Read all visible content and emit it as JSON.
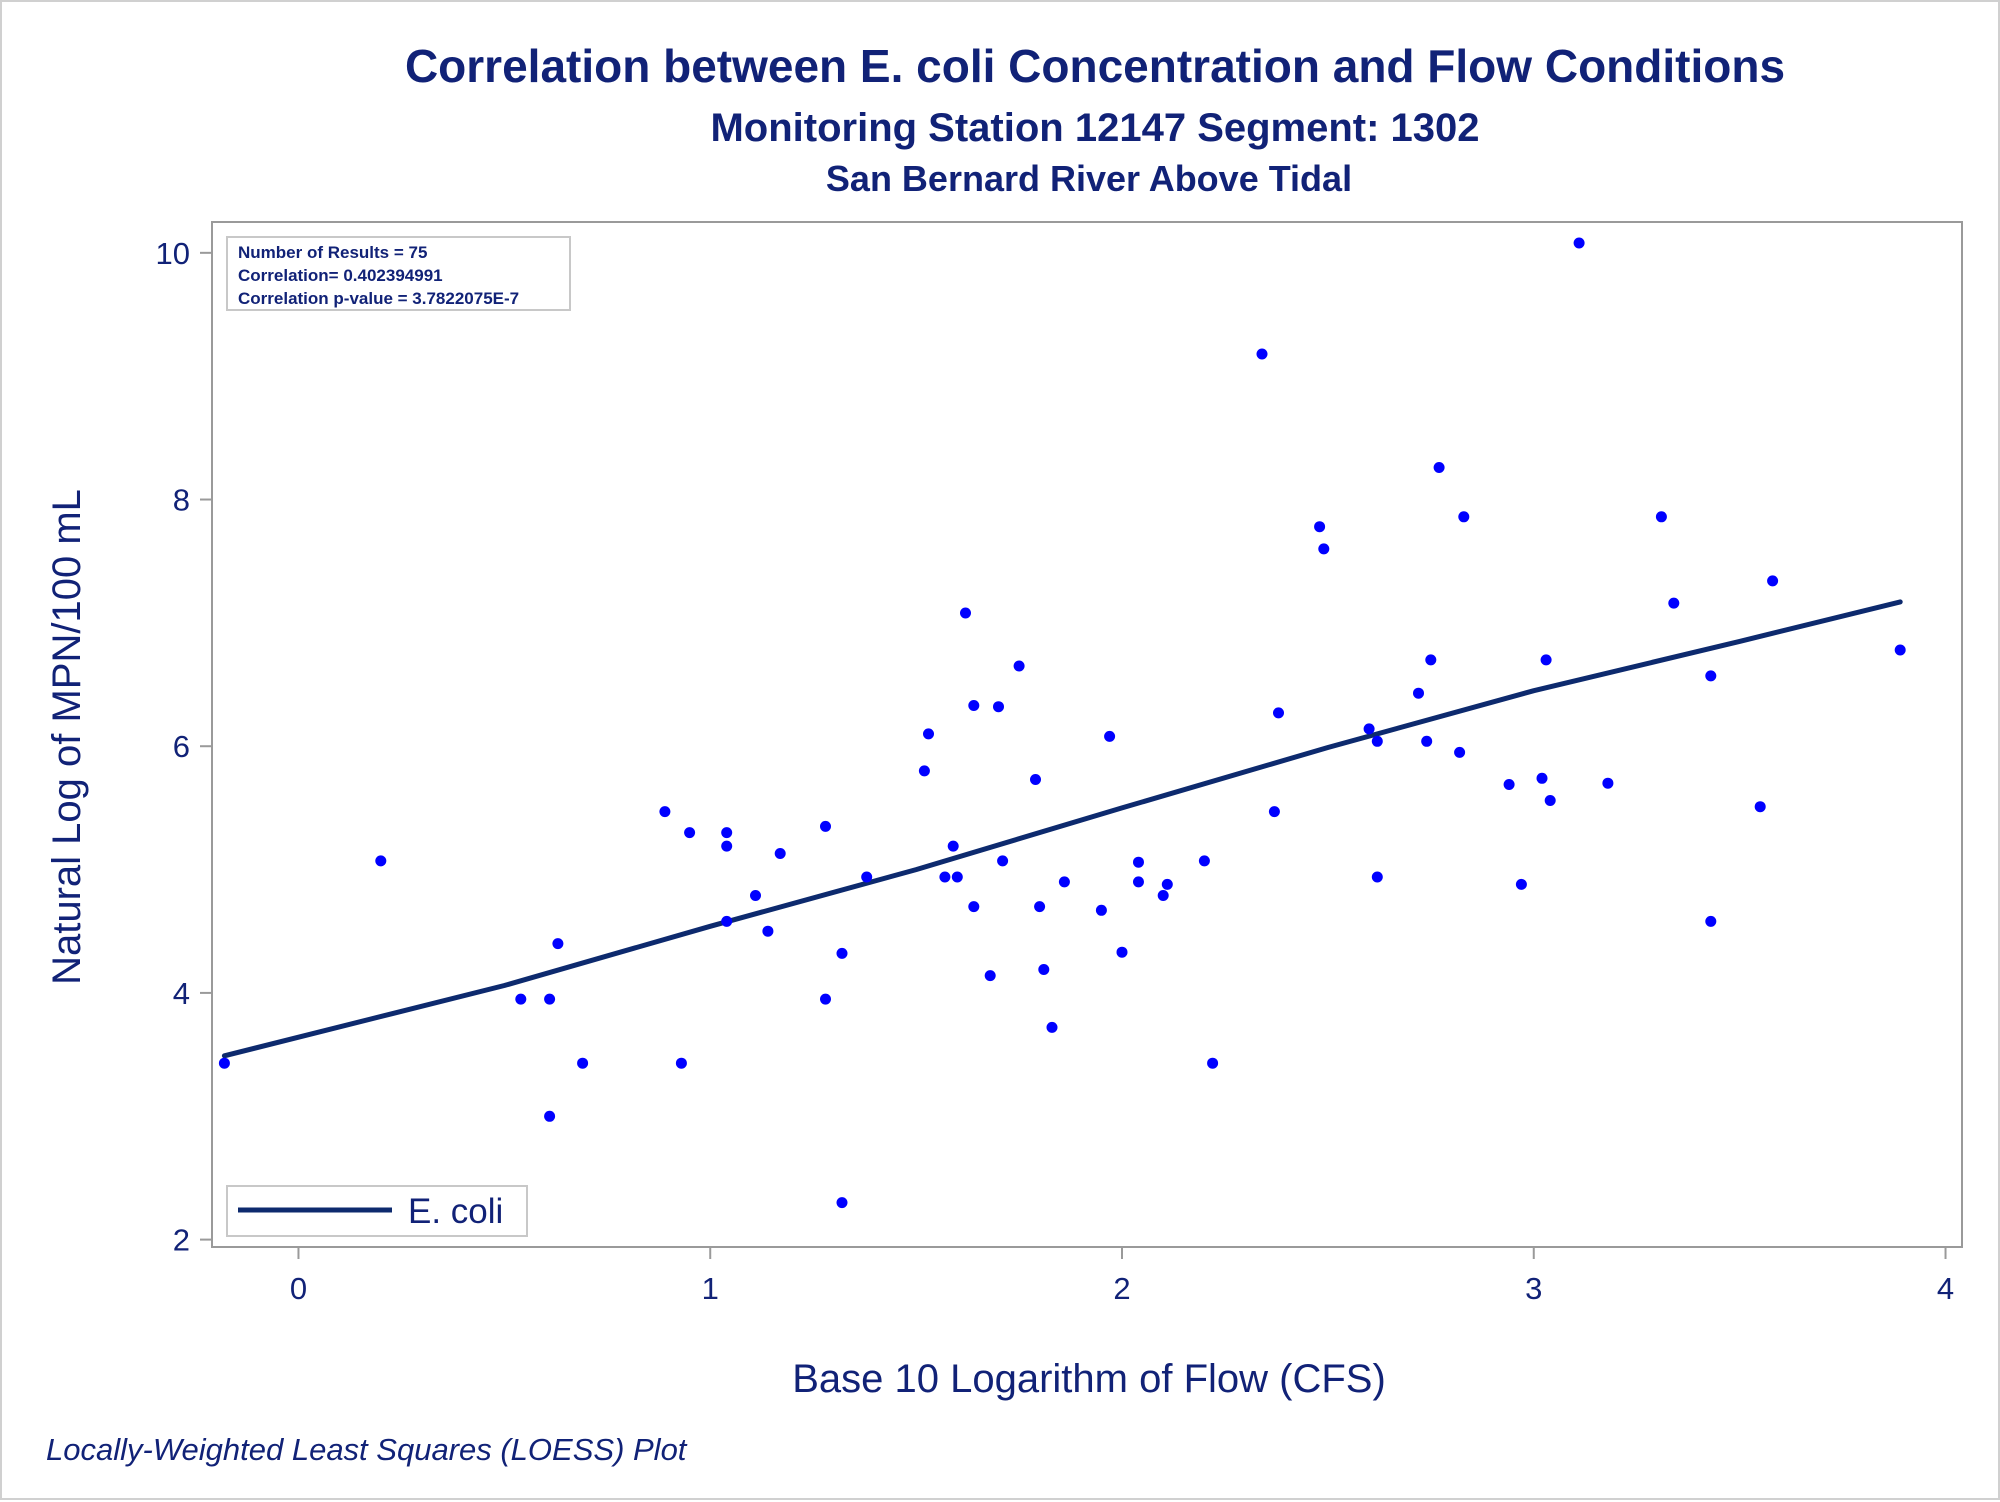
{
  "colors": {
    "text": "#112277",
    "line": "#0d2a6e",
    "points": "#0000ff",
    "frame": "#9a9a9a",
    "box_border": "#c8c8c8"
  },
  "chart_data": {
    "type": "scatter",
    "title": "Correlation between E. coli Concentration and Flow Conditions",
    "subtitle": "Monitoring Station 12147 Segment: 1302",
    "subtitle2": "San Bernard River Above Tidal",
    "xlabel": "Base 10 Logarithm of Flow (CFS)",
    "ylabel": "Natural Log of MPN/100 mL",
    "footnote": "Locally-Weighted Least Squares (LOESS) Plot",
    "xlim": [
      -0.21,
      4.04
    ],
    "ylim": [
      1.94,
      10.25
    ],
    "xticks": [
      "0",
      "1",
      "2",
      "3",
      "4"
    ],
    "yticks": [
      "2",
      "4",
      "6",
      "8",
      "10"
    ],
    "grid": false,
    "legend_position": "bottom-left",
    "legend": [
      "E. coli"
    ],
    "stats": {
      "line1": "Number of Results = 75",
      "line2": "Correlation= 0.402394991",
      "line3": "Correlation p-value = 3.7822075E-7"
    },
    "series": [
      {
        "name": "E. coli",
        "kind": "loess-line",
        "points": [
          [
            -0.18,
            3.49
          ],
          [
            0.5,
            4.06
          ],
          [
            1.0,
            4.54
          ],
          [
            1.5,
            5.0
          ],
          [
            2.0,
            5.5
          ],
          [
            2.5,
            5.99
          ],
          [
            3.0,
            6.45
          ],
          [
            3.5,
            6.85
          ],
          [
            3.89,
            7.17
          ]
        ]
      },
      {
        "name": "",
        "kind": "points",
        "points": [
          [
            -0.18,
            3.43
          ],
          [
            0.2,
            5.07
          ],
          [
            0.54,
            3.95
          ],
          [
            0.61,
            3.95
          ],
          [
            0.61,
            3.0
          ],
          [
            0.63,
            4.4
          ],
          [
            0.69,
            3.43
          ],
          [
            0.89,
            5.47
          ],
          [
            0.93,
            3.43
          ],
          [
            0.95,
            5.3
          ],
          [
            1.04,
            5.3
          ],
          [
            1.04,
            5.19
          ],
          [
            1.04,
            4.58
          ],
          [
            1.11,
            4.79
          ],
          [
            1.14,
            4.5
          ],
          [
            1.17,
            5.13
          ],
          [
            1.28,
            5.35
          ],
          [
            1.28,
            3.95
          ],
          [
            1.32,
            4.32
          ],
          [
            1.32,
            2.3
          ],
          [
            1.38,
            4.94
          ],
          [
            1.52,
            5.8
          ],
          [
            1.53,
            6.1
          ],
          [
            1.57,
            4.94
          ],
          [
            1.59,
            5.19
          ],
          [
            1.6,
            4.94
          ],
          [
            1.62,
            7.08
          ],
          [
            1.64,
            6.33
          ],
          [
            1.64,
            4.7
          ],
          [
            1.68,
            4.14
          ],
          [
            1.7,
            6.32
          ],
          [
            1.71,
            5.07
          ],
          [
            1.75,
            6.65
          ],
          [
            1.79,
            5.73
          ],
          [
            1.8,
            4.7
          ],
          [
            1.81,
            4.19
          ],
          [
            1.83,
            3.72
          ],
          [
            1.86,
            4.9
          ],
          [
            1.95,
            4.67
          ],
          [
            1.97,
            6.08
          ],
          [
            2.0,
            4.33
          ],
          [
            2.04,
            4.9
          ],
          [
            2.04,
            5.06
          ],
          [
            2.1,
            4.79
          ],
          [
            2.11,
            4.88
          ],
          [
            2.2,
            5.07
          ],
          [
            2.22,
            3.43
          ],
          [
            2.34,
            9.18
          ],
          [
            2.37,
            5.47
          ],
          [
            2.38,
            6.27
          ],
          [
            2.48,
            7.78
          ],
          [
            2.49,
            7.6
          ],
          [
            2.6,
            6.14
          ],
          [
            2.62,
            6.04
          ],
          [
            2.62,
            4.94
          ],
          [
            2.72,
            6.43
          ],
          [
            2.74,
            6.04
          ],
          [
            2.75,
            6.7
          ],
          [
            2.77,
            8.26
          ],
          [
            2.82,
            5.95
          ],
          [
            2.83,
            7.86
          ],
          [
            2.94,
            5.69
          ],
          [
            2.97,
            4.88
          ],
          [
            3.02,
            5.74
          ],
          [
            3.03,
            6.7
          ],
          [
            3.04,
            5.56
          ],
          [
            3.11,
            10.08
          ],
          [
            3.18,
            5.7
          ],
          [
            3.31,
            7.86
          ],
          [
            3.34,
            7.16
          ],
          [
            3.43,
            6.57
          ],
          [
            3.43,
            4.58
          ],
          [
            3.55,
            5.51
          ],
          [
            3.58,
            7.34
          ],
          [
            3.89,
            6.78
          ]
        ]
      }
    ]
  }
}
